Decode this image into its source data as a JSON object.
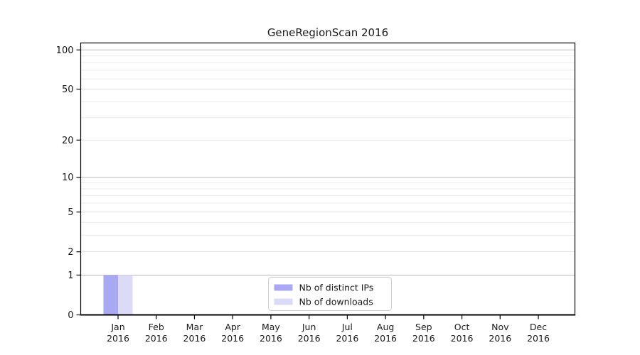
{
  "chart_data": {
    "type": "bar",
    "title": "GeneRegionScan 2016",
    "x_axis": {
      "months": [
        "Jan",
        "Feb",
        "Mar",
        "Apr",
        "May",
        "Jun",
        "Jul",
        "Aug",
        "Sep",
        "Oct",
        "Nov",
        "Dec"
      ],
      "year": "2016"
    },
    "y_axis": {
      "scale": "log10(1+v)",
      "tick_values": [
        0,
        1,
        2,
        5,
        10,
        20,
        50,
        100
      ],
      "tick_labels": [
        "0",
        "1",
        "2",
        "5",
        "10",
        "20",
        "50",
        "100"
      ],
      "minor_gridline_values": [
        3,
        4,
        6,
        7,
        8,
        9,
        30,
        40,
        60,
        70,
        80,
        90
      ],
      "emphasized_gridline_values": [
        1,
        10,
        100
      ],
      "range": [
        0,
        113
      ]
    },
    "series": [
      {
        "name": "Nb of distinct IPs",
        "color": "#a9a9f3",
        "values": [
          1,
          0,
          0,
          0,
          0,
          0,
          0,
          0,
          0,
          0,
          0,
          0
        ]
      },
      {
        "name": "Nb of downloads",
        "color": "#dbdbf8",
        "values": [
          1,
          0,
          0,
          0,
          0,
          0,
          0,
          0,
          0,
          0,
          0,
          0
        ]
      }
    ],
    "legend": {
      "labels": [
        "Nb of distinct IPs",
        "Nb of downloads"
      ],
      "position": "inside-bottom-center"
    },
    "grid": "horizontal",
    "colors": {
      "background": "#ffffff",
      "axis": "#000000",
      "text": "#1a1a1a",
      "grid_minor": "#ececec",
      "grid_labeled": "#e0e0e0",
      "grid_emphasized": "#bbbbbb",
      "legend_border": "#cccccc",
      "legend_background": "#ffffff"
    }
  }
}
